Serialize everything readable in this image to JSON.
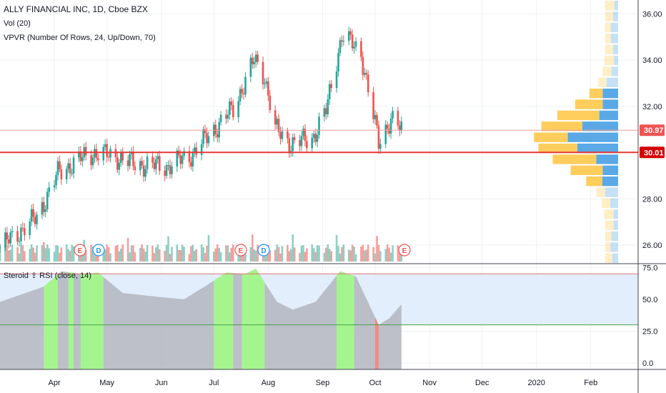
{
  "header": {
    "title": "ALLY FINANCIAL INC, 1D, Cboe BZX",
    "vol": "Vol (20)",
    "vpvr": "VPVR (Number Of Rows, 24, Up/Down, 70)",
    "rsi": "Steroid ⇪ RSI (close, 14)"
  },
  "price_axis": {
    "ticks": [
      "36.00",
      "34.00",
      "32.00",
      "28.00",
      "26.00"
    ],
    "last_price": "30.97",
    "level": "30.01"
  },
  "rsi_axis": {
    "ticks": [
      "75.0",
      "50.0",
      "25.0",
      "0.0"
    ]
  },
  "time_axis": {
    "labels": [
      "Apr",
      "May",
      "Jun",
      "Jul",
      "Aug",
      "Sep",
      "Oct",
      "Nov",
      "Dec",
      "2020",
      "Feb"
    ]
  },
  "events": [
    "E",
    "D",
    "E",
    "D",
    "E"
  ],
  "colors": {
    "up": "#26a69a",
    "down": "#ef5350",
    "vol_up": "#8fcfc4",
    "vol_down": "#f4a09e",
    "level": "#e53935",
    "vp_up": "#5aa9e6",
    "vp_down": "#ffcd5c",
    "rsi_fill": "#b2b5be",
    "rsi_green": "#a5f58f",
    "rsi_band": "#e3eefc"
  },
  "chart_data": {
    "type": "candlestick",
    "x_range": [
      "2019-03-01",
      "2020-02-28"
    ],
    "ylim": [
      25.2,
      36.6
    ],
    "horizontal_lines": [
      30.97,
      30.01
    ],
    "price_path": [
      {
        "date": "2019-03-01",
        "price": 25.9
      },
      {
        "date": "2019-03-22",
        "price": 27.2
      },
      {
        "date": "2019-04-03",
        "price": 29.1
      },
      {
        "date": "2019-04-15",
        "price": 29.7
      },
      {
        "date": "2019-04-24",
        "price": 30.0
      },
      {
        "date": "2019-05-07",
        "price": 29.8
      },
      {
        "date": "2019-05-17",
        "price": 29.5
      },
      {
        "date": "2019-06-04",
        "price": 29.4
      },
      {
        "date": "2019-06-18",
        "price": 29.9
      },
      {
        "date": "2019-07-01",
        "price": 31.0
      },
      {
        "date": "2019-07-12",
        "price": 31.9
      },
      {
        "date": "2019-07-24",
        "price": 34.0
      },
      {
        "date": "2019-07-30",
        "price": 33.3
      },
      {
        "date": "2019-08-05",
        "price": 31.0
      },
      {
        "date": "2019-08-14",
        "price": 30.4
      },
      {
        "date": "2019-08-26",
        "price": 30.6
      },
      {
        "date": "2019-09-03",
        "price": 31.8
      },
      {
        "date": "2019-09-12",
        "price": 35.1
      },
      {
        "date": "2019-09-23",
        "price": 34.3
      },
      {
        "date": "2019-10-03",
        "price": 30.4
      },
      {
        "date": "2019-10-10",
        "price": 31.5
      },
      {
        "date": "2019-10-16",
        "price": 30.97
      }
    ],
    "rsi": {
      "ylim": [
        -5,
        78
      ],
      "levels": [
        70,
        30
      ],
      "path": [
        {
          "date": "2019-03-01",
          "value": 48
        },
        {
          "date": "2019-03-26",
          "value": 60
        },
        {
          "date": "2019-04-05",
          "value": 72
        },
        {
          "date": "2019-04-17",
          "value": 70
        },
        {
          "date": "2019-04-26",
          "value": 71
        },
        {
          "date": "2019-05-10",
          "value": 55
        },
        {
          "date": "2019-05-30",
          "value": 52
        },
        {
          "date": "2019-06-14",
          "value": 50
        },
        {
          "date": "2019-06-28",
          "value": 62
        },
        {
          "date": "2019-07-08",
          "value": 71
        },
        {
          "date": "2019-07-19",
          "value": 70
        },
        {
          "date": "2019-07-25",
          "value": 74
        },
        {
          "date": "2019-08-06",
          "value": 48
        },
        {
          "date": "2019-08-15",
          "value": 42
        },
        {
          "date": "2019-08-28",
          "value": 48
        },
        {
          "date": "2019-09-11",
          "value": 72
        },
        {
          "date": "2019-09-20",
          "value": 68
        },
        {
          "date": "2019-10-03",
          "value": 30
        },
        {
          "date": "2019-10-09",
          "value": 35
        },
        {
          "date": "2019-10-16",
          "value": 46
        }
      ],
      "overbought_spans": [
        [
          "2019-03-26",
          "2019-04-03"
        ],
        [
          "2019-04-09",
          "2019-04-12"
        ],
        [
          "2019-04-16",
          "2019-04-29"
        ],
        [
          "2019-07-01",
          "2019-07-12"
        ],
        [
          "2019-07-17",
          "2019-07-30"
        ],
        [
          "2019-09-09",
          "2019-09-19"
        ]
      ],
      "oversold_spans": [
        [
          "2019-10-01",
          "2019-10-03"
        ]
      ]
    }
  }
}
